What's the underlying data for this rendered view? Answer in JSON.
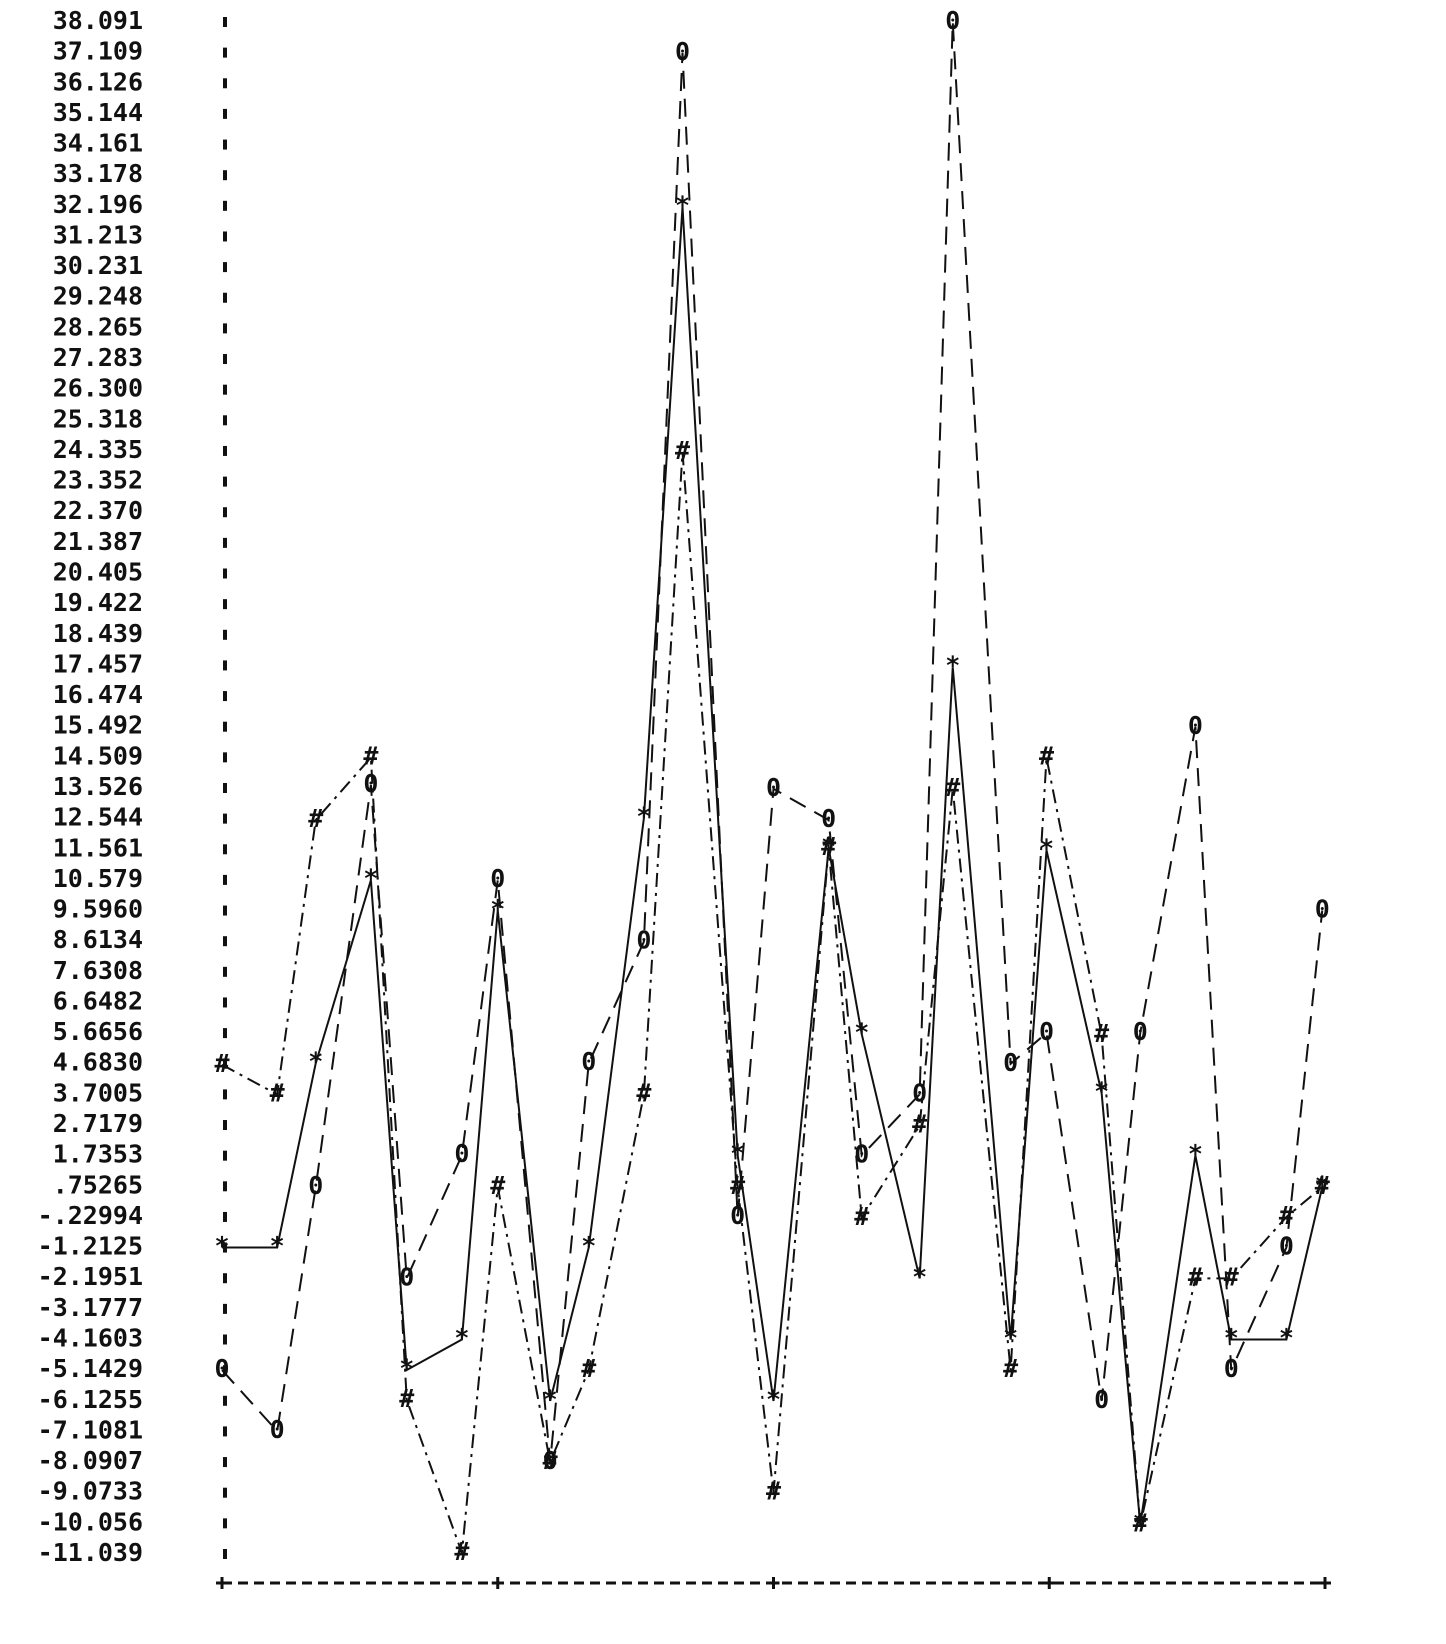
{
  "chart_data": {
    "type": "line",
    "x": [
      0,
      0.2,
      0.34,
      0.54,
      0.67,
      0.87,
      1,
      1.19,
      1.33,
      1.53,
      1.67,
      1.87,
      2,
      2.2,
      2.32,
      2.53,
      2.65,
      2.86,
      2.99,
      3.19,
      3.33,
      3.53,
      3.66,
      3.86,
      3.99
    ],
    "xlim": [
      0,
      4
    ],
    "xticks": [
      0,
      1,
      2,
      3,
      4
    ],
    "ylim": [
      -11.039,
      38.091
    ],
    "yticks": [
      38.091,
      37.109,
      36.126,
      35.144,
      34.161,
      33.178,
      32.196,
      31.213,
      30.231,
      29.248,
      28.265,
      27.283,
      {
        "value": 26.3,
        "label": "26.300"
      },
      25.318,
      24.335,
      23.352,
      {
        "value": 22.37,
        "label": "22.370"
      },
      21.387,
      20.405,
      19.422,
      18.439,
      17.457,
      16.474,
      15.492,
      14.509,
      13.526,
      12.544,
      11.561,
      10.579,
      {
        "value": 9.596,
        "label": "9.5960"
      },
      8.6134,
      7.6308,
      6.6482,
      5.6656,
      {
        "value": 4.683,
        "label": "4.6830"
      },
      3.7005,
      2.7179,
      1.7353,
      {
        "value": 0.75265,
        "label": ".75265"
      },
      {
        "value": -0.22994,
        "label": "-.22994"
      },
      -1.2125,
      -2.1951,
      -3.1777,
      -4.1603,
      -5.1429,
      -6.1255,
      -7.1081,
      -8.0907,
      -9.0733,
      -10.056,
      -11.039
    ],
    "series": [
      {
        "marker": "*",
        "line_style": "solid",
        "color": "#111111",
        "values": [
          -1.21,
          -1.21,
          4.7,
          10.57,
          -5.14,
          -4.16,
          9.6,
          -6.13,
          -1.21,
          12.56,
          32.16,
          1.75,
          -6.13,
          11.6,
          5.63,
          -2.2,
          17.4,
          -4.16,
          11.53,
          3.74,
          -10.1,
          1.74,
          -4.16,
          -4.16,
          0.73
        ]
      },
      {
        "marker": "#",
        "line_style": "dashdot",
        "color": "#111111",
        "values": [
          4.65,
          3.7,
          12.5,
          14.5,
          -6.1,
          -11.0,
          0.73,
          -8.09,
          -5.14,
          3.7,
          24.3,
          0.73,
          -9.07,
          11.6,
          -0.26,
          2.7,
          13.5,
          -5.14,
          14.5,
          5.6,
          -10.1,
          -2.2,
          -2.2,
          -0.23,
          0.73
        ]
      },
      {
        "marker": "0",
        "line_style": "dashed",
        "color": "#111111",
        "values": [
          -5.14,
          -7.1,
          0.73,
          13.62,
          -2.2,
          1.75,
          10.57,
          -8.09,
          4.7,
          8.6,
          37.1,
          -0.23,
          13.5,
          12.5,
          1.74,
          3.7,
          38.09,
          4.68,
          5.67,
          -6.13,
          5.67,
          15.49,
          -5.14,
          -1.21,
          9.6
        ]
      }
    ]
  }
}
